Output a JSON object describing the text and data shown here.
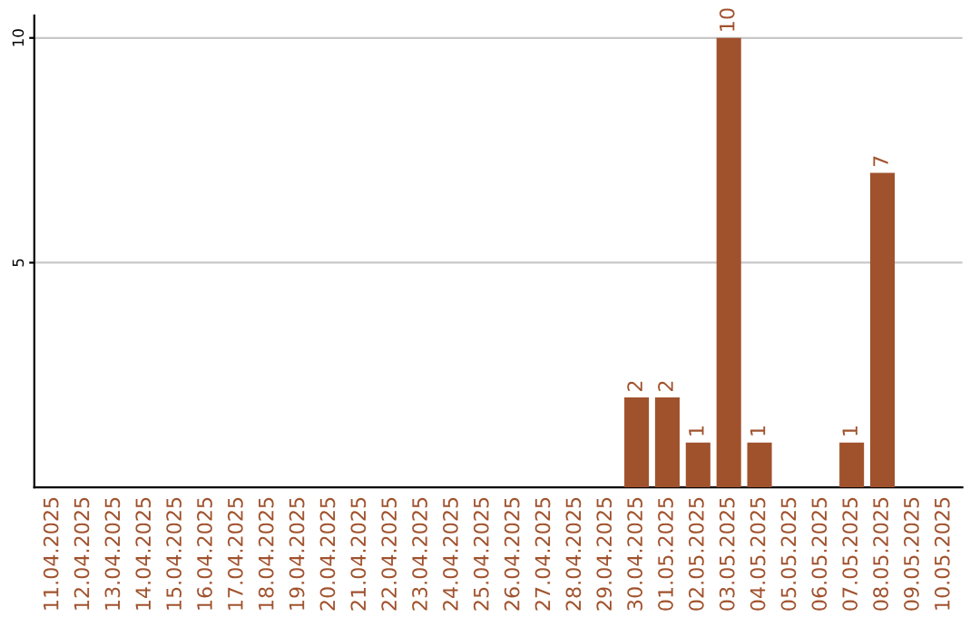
{
  "chart_data": {
    "type": "bar",
    "categories": [
      "11.04.2025",
      "12.04.2025",
      "13.04.2025",
      "14.04.2025",
      "15.04.2025",
      "16.04.2025",
      "17.04.2025",
      "18.04.2025",
      "19.04.2025",
      "20.04.2025",
      "21.04.2025",
      "22.04.2025",
      "23.04.2025",
      "24.04.2025",
      "25.04.2025",
      "26.04.2025",
      "27.04.2025",
      "28.04.2025",
      "29.04.2025",
      "30.04.2025",
      "01.05.2025",
      "02.05.2025",
      "03.05.2025",
      "04.05.2025",
      "05.05.2025",
      "06.05.2025",
      "07.05.2025",
      "08.05.2025",
      "09.05.2025",
      "10.05.2025"
    ],
    "values": [
      0,
      0,
      0,
      0,
      0,
      0,
      0,
      0,
      0,
      0,
      0,
      0,
      0,
      0,
      0,
      0,
      0,
      0,
      0,
      2,
      2,
      1,
      10,
      1,
      0,
      0,
      1,
      7,
      0,
      0
    ],
    "value_labels": [
      null,
      null,
      null,
      null,
      null,
      null,
      null,
      null,
      null,
      null,
      null,
      null,
      null,
      null,
      null,
      null,
      null,
      null,
      null,
      "2",
      "2",
      "1",
      "10",
      "1",
      null,
      null,
      "1",
      "7",
      null,
      null
    ],
    "color": "#a0522d",
    "ylim": [
      0,
      10.5
    ],
    "yticks": [
      5,
      10
    ],
    "grid": "y",
    "legend": false
  }
}
